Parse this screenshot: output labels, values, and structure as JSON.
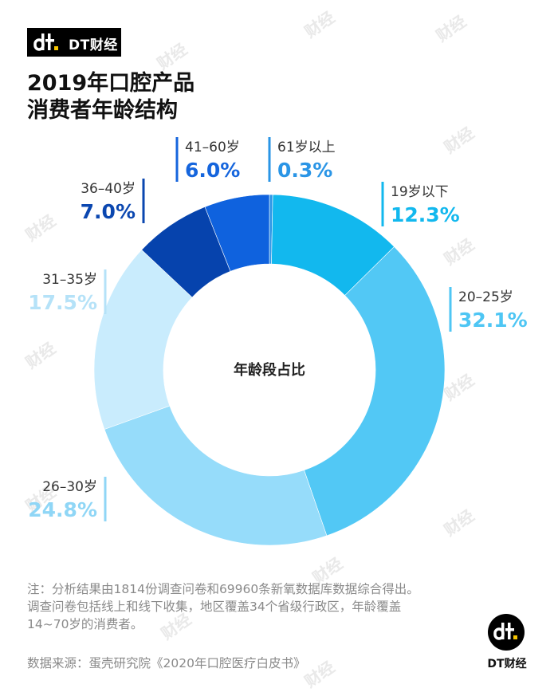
{
  "brand": {
    "logo_text": "DT财经",
    "corner_text": "DT财经",
    "watermark": "财经"
  },
  "title": {
    "line1": "2019年口腔产品",
    "line2": "消费者年龄结构"
  },
  "chart_data": {
    "type": "pie",
    "title": "2019年口腔产品消费者年龄结构",
    "center_label": "年龄段占比",
    "slices": [
      {
        "label": "61岁以上",
        "value": 0.3,
        "display": "0.3%",
        "color": "#2a95e6",
        "label_color": "#2a95e6"
      },
      {
        "label": "19岁以下",
        "value": 12.3,
        "display": "12.3%",
        "color": "#12b8ee",
        "label_color": "#12b8ee"
      },
      {
        "label": "20–25岁",
        "value": 32.1,
        "display": "32.1%",
        "color": "#52c8f5",
        "label_color": "#4ec6f4"
      },
      {
        "label": "26–30岁",
        "value": 24.8,
        "display": "24.8%",
        "color": "#96dcfa",
        "label_color": "#8fd6f6"
      },
      {
        "label": "31–35岁",
        "value": 17.5,
        "display": "17.5%",
        "color": "#c9ecfd",
        "label_color": "#b5e2f8"
      },
      {
        "label": "36–40岁",
        "value": 7.0,
        "display": "7.0%",
        "color": "#0643ad",
        "label_color": "#0b47b0"
      },
      {
        "label": "41–60岁",
        "value": 6.0,
        "display": "6.0%",
        "color": "#0f62de",
        "label_color": "#1565dd"
      }
    ]
  },
  "footnote": {
    "line1": "注：分析结果由1814份调查问卷和69960条新氧数据库数据综合得出。",
    "line2": "调查问卷包括线上和线下收集，地区覆盖34个省级行政区，年龄覆盖",
    "line3": "14~70岁的消费者。"
  },
  "source": "数据来源：蛋壳研究院《2020年口腔医疗白皮书》"
}
